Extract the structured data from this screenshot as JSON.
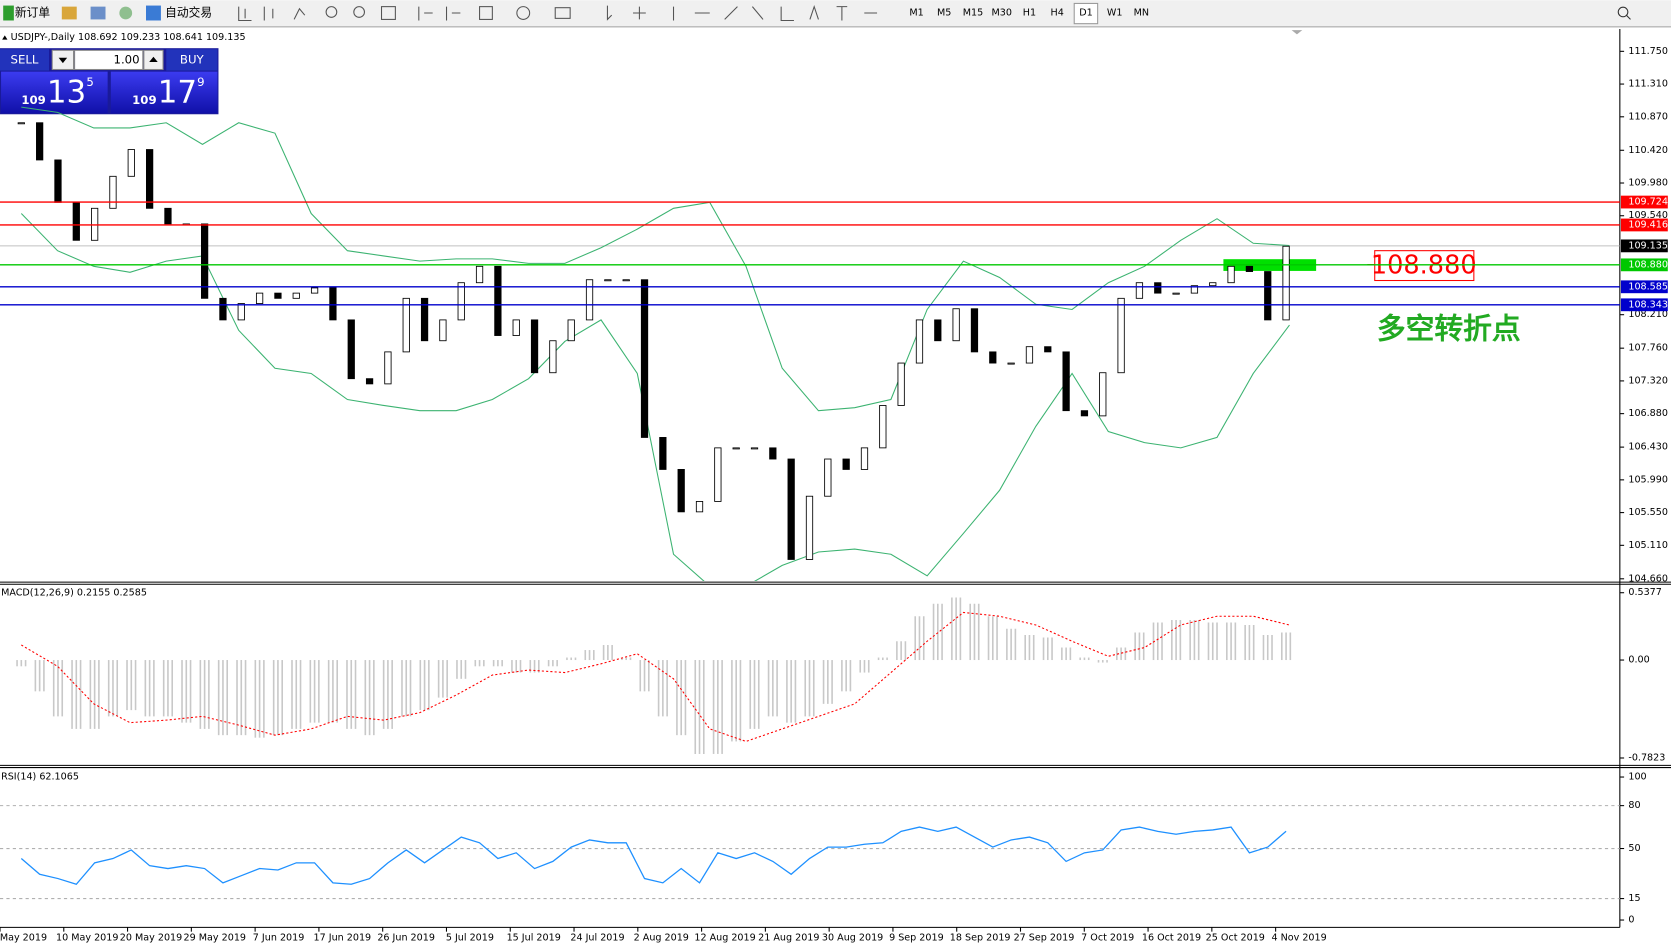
{
  "toolbar": {
    "new_order": "新订单",
    "auto_trading": "自动交易",
    "timeframes": [
      "M1",
      "M5",
      "M15",
      "M30",
      "H1",
      "H4",
      "D1",
      "W1",
      "MN"
    ]
  },
  "trade_panel": {
    "sell": "SELL",
    "buy": "BUY",
    "lots": "1.00",
    "sell_big": "109",
    "sell_mid": "13",
    "sell_small": "5",
    "buy_big": "109",
    "buy_mid": "17",
    "buy_small": "9"
  },
  "price_pane": {
    "header": "USDJPY-,Daily  108.692 109.233 108.641 109.135",
    "ylim": [
      104.63,
      112.05
    ],
    "yticks": [
      {
        "value": 111.75,
        "label": "111.750"
      },
      {
        "value": 111.31,
        "label": "111.310"
      },
      {
        "value": 110.87,
        "label": "110.870"
      },
      {
        "value": 110.42,
        "label": "110.420"
      },
      {
        "value": 109.98,
        "label": "109.980"
      },
      {
        "value": 109.54,
        "label": "109.540"
      },
      {
        "value": 108.21,
        "label": "108.210"
      },
      {
        "value": 107.76,
        "label": "107.760"
      },
      {
        "value": 107.32,
        "label": "107.320"
      },
      {
        "value": 106.88,
        "label": "106.880"
      },
      {
        "value": 106.43,
        "label": "106.430"
      },
      {
        "value": 105.99,
        "label": "105.990"
      },
      {
        "value": 105.55,
        "label": "105.550"
      },
      {
        "value": 105.11,
        "label": "105.110"
      },
      {
        "value": 104.66,
        "label": "104.660"
      }
    ],
    "levels": [
      {
        "value": 109.724,
        "label": "109.724",
        "color": "#ff0000"
      },
      {
        "value": 109.416,
        "label": "109.416",
        "color": "#ff0000"
      },
      {
        "value": 108.88,
        "label": "108.880",
        "color": "#00c800"
      },
      {
        "value": 108.585,
        "label": "108.585",
        "color": "#0000cc"
      },
      {
        "value": 108.343,
        "label": "108.343",
        "color": "#0000cc"
      }
    ],
    "current": {
      "value": 109.135,
      "label": "109.135"
    },
    "closes": [
      110.79,
      110.29,
      109.72,
      109.21,
      109.64,
      110.07,
      110.43,
      109.64,
      109.43,
      109.43,
      108.43,
      108.14,
      108.36,
      108.5,
      108.43,
      108.5,
      108.57,
      108.14,
      107.35,
      107.28,
      107.71,
      108.43,
      107.86,
      108.14,
      108.64,
      108.86,
      107.93,
      108.14,
      107.43,
      107.86,
      108.14,
      108.68,
      108.68,
      108.68,
      106.56,
      106.13,
      105.56,
      105.7,
      106.42,
      106.42,
      106.42,
      106.27,
      104.92,
      105.77,
      106.27,
      106.13,
      106.42,
      106.99,
      107.56,
      108.14,
      107.86,
      108.29,
      107.71,
      107.56,
      107.56,
      107.78,
      107.71,
      106.92,
      106.85,
      107.43,
      108.43,
      108.64,
      108.5,
      108.5,
      108.6,
      108.64,
      108.86,
      108.79,
      108.14,
      109.13
    ],
    "bands_upper": [
      111.0,
      110.93,
      110.72,
      110.72,
      110.79,
      110.5,
      110.79,
      110.65,
      109.57,
      109.07,
      109.0,
      108.93,
      108.96,
      108.96,
      108.9,
      108.9,
      109.11,
      109.36,
      109.64,
      109.72,
      108.86,
      107.49,
      106.92,
      106.96,
      107.07,
      108.28,
      108.93,
      108.71,
      108.35,
      108.28,
      108.64,
      108.86,
      109.21,
      109.5,
      109.17,
      109.14
    ],
    "bands_lower": [
      109.57,
      109.07,
      108.86,
      108.78,
      108.93,
      109.0,
      108.0,
      107.49,
      107.42,
      107.07,
      106.99,
      106.92,
      106.92,
      107.07,
      107.35,
      107.85,
      108.14,
      107.42,
      104.99,
      104.56,
      104.56,
      104.84,
      105.02,
      105.06,
      104.99,
      104.7,
      105.27,
      105.85,
      106.71,
      107.42,
      106.64,
      106.49,
      106.42,
      106.56,
      107.42,
      108.07
    ],
    "annotation_price": "108.880",
    "annotation_text": "多空转折点"
  },
  "macd_pane": {
    "label": "MACD(12,26,9) 0.2155 0.2585",
    "ylim": [
      -0.833,
      0.597
    ],
    "yticks": [
      {
        "value": 0.5377,
        "label": "0.5377"
      },
      {
        "value": 0,
        "label": "0.00"
      },
      {
        "value": -0.7823,
        "label": "-0.7823"
      }
    ],
    "histogram": [
      -0.05,
      -0.25,
      -0.45,
      -0.55,
      -0.55,
      -0.45,
      -0.4,
      -0.45,
      -0.45,
      -0.5,
      -0.55,
      -0.6,
      -0.6,
      -0.62,
      -0.6,
      -0.55,
      -0.5,
      -0.5,
      -0.55,
      -0.6,
      -0.55,
      -0.45,
      -0.4,
      -0.3,
      -0.15,
      -0.05,
      -0.05,
      -0.1,
      -0.1,
      -0.05,
      0.02,
      0.08,
      0.12,
      0.02,
      -0.25,
      -0.45,
      -0.6,
      -0.75,
      -0.75,
      -0.65,
      -0.55,
      -0.45,
      -0.5,
      -0.45,
      -0.35,
      -0.25,
      -0.1,
      0.02,
      0.15,
      0.35,
      0.45,
      0.5,
      0.45,
      0.35,
      0.25,
      0.2,
      0.18,
      0.1,
      0.02,
      -0.02,
      0.1,
      0.22,
      0.3,
      0.32,
      0.32,
      0.3,
      0.3,
      0.28,
      0.2,
      0.22
    ],
    "signal": [
      0.12,
      -0.05,
      -0.35,
      -0.5,
      -0.48,
      -0.45,
      -0.52,
      -0.6,
      -0.55,
      -0.45,
      -0.48,
      -0.42,
      -0.28,
      -0.12,
      -0.08,
      -0.1,
      -0.03,
      0.05,
      -0.15,
      -0.55,
      -0.65,
      -0.55,
      -0.45,
      -0.35,
      -0.1,
      0.15,
      0.38,
      0.35,
      0.28,
      0.15,
      0.03,
      0.1,
      0.28,
      0.35,
      0.35,
      0.28
    ]
  },
  "rsi_pane": {
    "label": "RSI(14) 62.1065",
    "ylim": [
      -4.4,
      105.9
    ],
    "yticks": [
      100,
      80,
      50,
      15,
      0
    ],
    "values": [
      43,
      32,
      29,
      25,
      40,
      43,
      49,
      38,
      36,
      38,
      36,
      26,
      31,
      36,
      35,
      40,
      40,
      26,
      25,
      29,
      40,
      49,
      40,
      49,
      58,
      54,
      43,
      47,
      36,
      41,
      51,
      56,
      54,
      54,
      29,
      26,
      36,
      26,
      47,
      43,
      47,
      41,
      32,
      43,
      51,
      51,
      53,
      54,
      62,
      65,
      62,
      65,
      58,
      51,
      56,
      58,
      54,
      41,
      47,
      49,
      63,
      65,
      62,
      60,
      62,
      63,
      65,
      47,
      51,
      62.1
    ]
  },
  "x_axis": {
    "dates": [
      "May 2019",
      "10 May 2019",
      "20 May 2019",
      "29 May 2019",
      "7 Jun 2019",
      "17 Jun 2019",
      "26 Jun 2019",
      "5 Jul 2019",
      "15 Jul 2019",
      "24 Jul 2019",
      "2 Aug 2019",
      "12 Aug 2019",
      "21 Aug 2019",
      "30 Aug 2019",
      "9 Sep 2019",
      "18 Sep 2019",
      "27 Sep 2019",
      "7 Oct 2019",
      "16 Oct 2019",
      "25 Oct 2019",
      "4 Nov 2019"
    ]
  }
}
